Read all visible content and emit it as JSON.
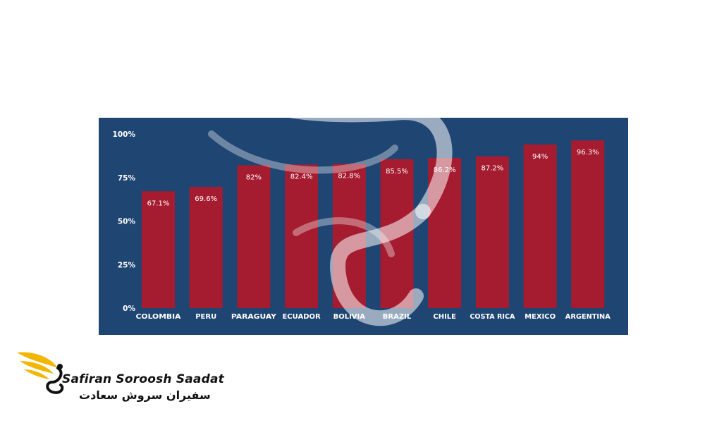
{
  "chart_data": {
    "type": "bar",
    "categories": [
      "COLOMBIA",
      "PERU",
      "PARAGUAY",
      "ECUADOR",
      "BOLIVIA",
      "BRAZIL",
      "CHILE",
      "COSTA RICA",
      "MEXICO",
      "ARGENTINA"
    ],
    "values": [
      67.1,
      69.6,
      82,
      82.4,
      82.8,
      85.5,
      86.2,
      87.2,
      94,
      96.3
    ],
    "value_labels": [
      "67.1%",
      "69.6%",
      "82%",
      "82.4%",
      "82.8%",
      "85.5%",
      "86.2%",
      "87.2%",
      "94%",
      "96.3%"
    ],
    "yticks": [
      0,
      25,
      50,
      75,
      100
    ],
    "ytick_labels": [
      "0%",
      "25%",
      "50%",
      "75%",
      "100%"
    ],
    "ylim": [
      0,
      100
    ],
    "title": "",
    "xlabel": "",
    "ylabel": "",
    "grid": false,
    "colors": {
      "background": "#1f4573",
      "bar": "#a51c30",
      "text": "#ffffff"
    }
  },
  "brand": {
    "name_en": "Safiran Soroosh Saadat",
    "name_fa": "سفیران سروش سعادت",
    "colors": {
      "wing": "#f2b705",
      "text": "#111111"
    }
  }
}
